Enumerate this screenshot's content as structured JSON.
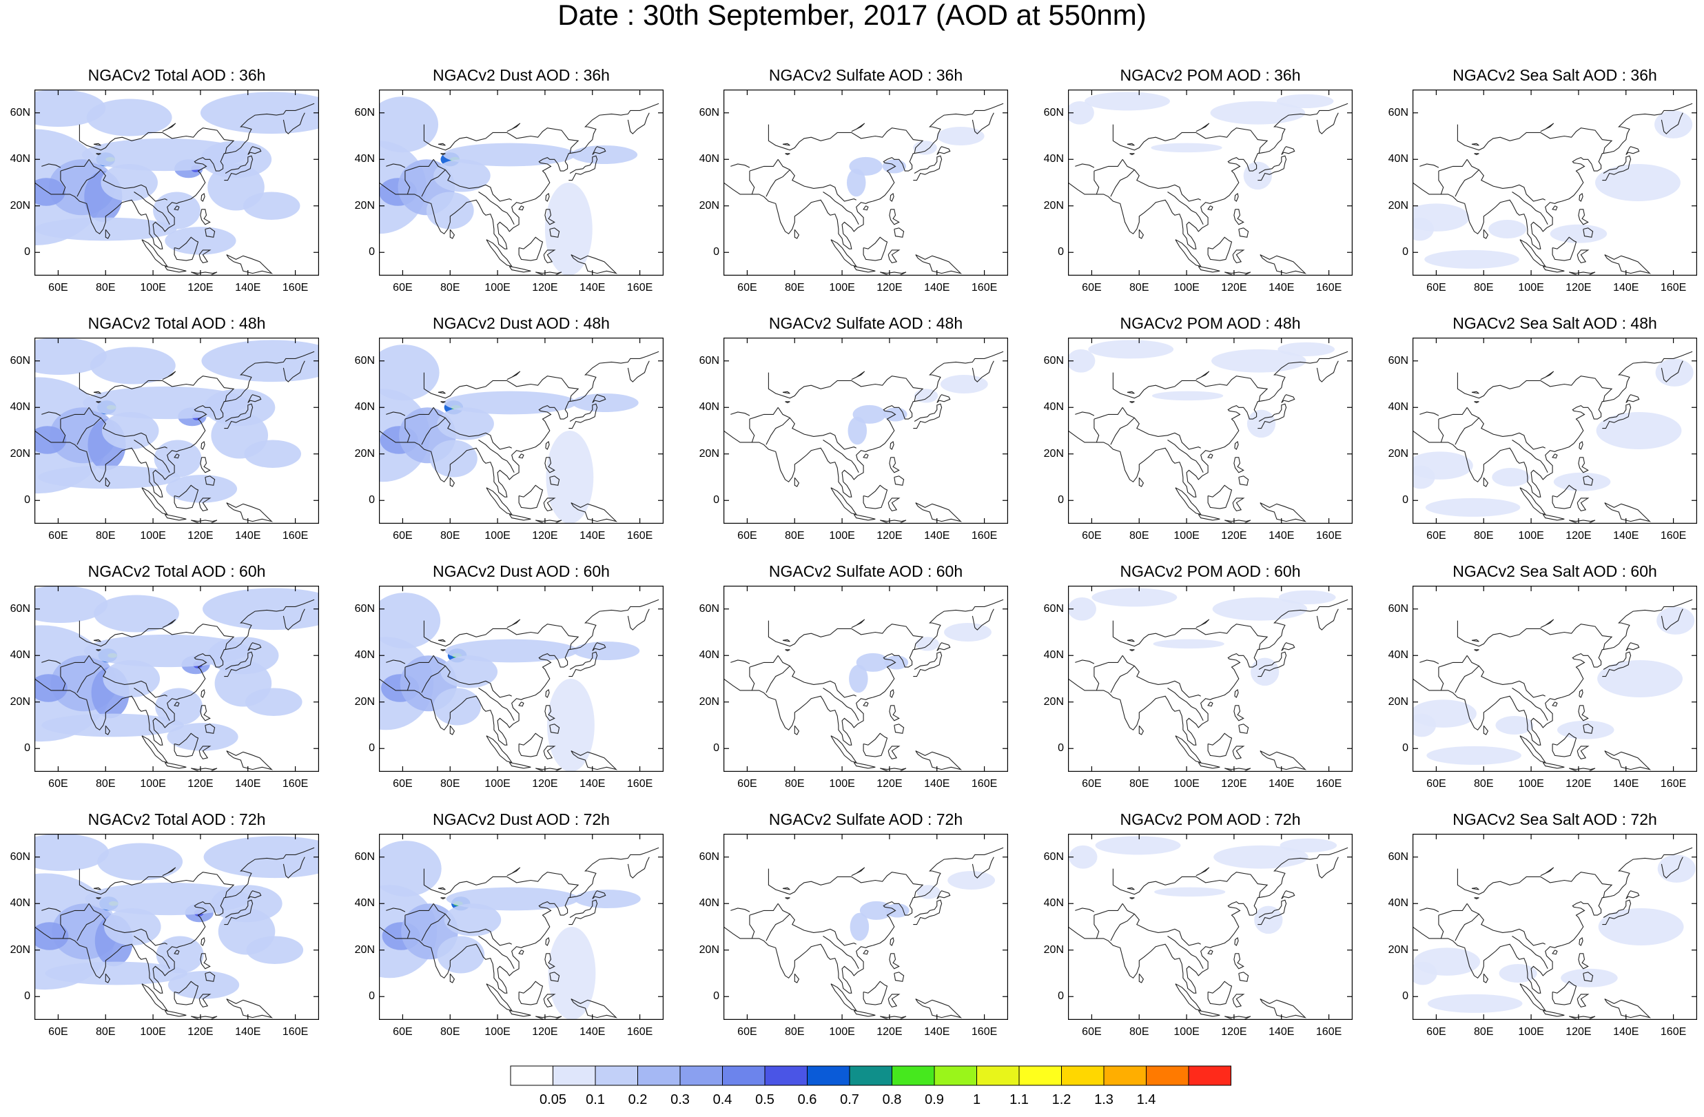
{
  "title": "Date : 30th September, 2017 (AOD at 550nm)",
  "columns": [
    {
      "species": "Total",
      "blobs": "total"
    },
    {
      "species": "Dust",
      "blobs": "dust"
    },
    {
      "species": "Sulfate",
      "blobs": "sulfate"
    },
    {
      "species": "POM",
      "blobs": "pom"
    },
    {
      "species": "Sea Salt",
      "blobs": "seasalt"
    }
  ],
  "panel_titles": [
    [
      "NGACv2 Total AOD : 36h",
      "NGACv2 Dust AOD : 36h",
      "NGACv2 Sulfate AOD : 36h",
      "NGACv2 POM AOD : 36h",
      "NGACv2 Sea Salt AOD : 36h"
    ],
    [
      "NGACv2 Total AOD : 48h",
      "NGACv2 Dust AOD : 48h",
      "NGACv2 Sulfate AOD : 48h",
      "NGACv2 POM AOD : 48h",
      "NGACv2 Sea Salt AOD : 48h"
    ],
    [
      "NGACv2 Total AOD : 60h",
      "NGACv2 Dust AOD : 60h",
      "NGACv2 Sulfate AOD : 60h",
      "NGACv2 POM AOD : 60h",
      "NGACv2 Sea Salt AOD : 60h"
    ],
    [
      "NGACv2 Total AOD : 72h",
      "NGACv2 Dust AOD : 72h",
      "NGACv2 Sulfate AOD : 72h",
      "NGACv2 POM AOD : 72h",
      "NGACv2 Sea Salt  AOD : 72h"
    ]
  ],
  "lat_ticks": [
    "60N",
    "40N",
    "20N",
    "0"
  ],
  "lon_ticks": [
    "60E",
    "80E",
    "100E",
    "120E",
    "140E",
    "160E"
  ],
  "map_extent": {
    "lon": [
      50,
      170
    ],
    "lat": [
      -10,
      70
    ]
  },
  "colorbar": {
    "labels": [
      "0.05",
      "0.1",
      "0.2",
      "0.3",
      "0.4",
      "0.5",
      "0.6",
      "0.7",
      "0.8",
      "0.9",
      "1",
      "1.1",
      "1.2",
      "1.3",
      "1.4"
    ],
    "colors": [
      "#ffffff",
      "#dfe6fb",
      "#c2d0f8",
      "#a5b8f4",
      "#8aa0f0",
      "#6c84ec",
      "#4a55e6",
      "#0a5bd8",
      "#0f8f8a",
      "#46e81e",
      "#9af51a",
      "#e8f51a",
      "#ffff1c",
      "#ffd700",
      "#ffae00",
      "#ff7a00",
      "#ff2a1a"
    ]
  }
}
